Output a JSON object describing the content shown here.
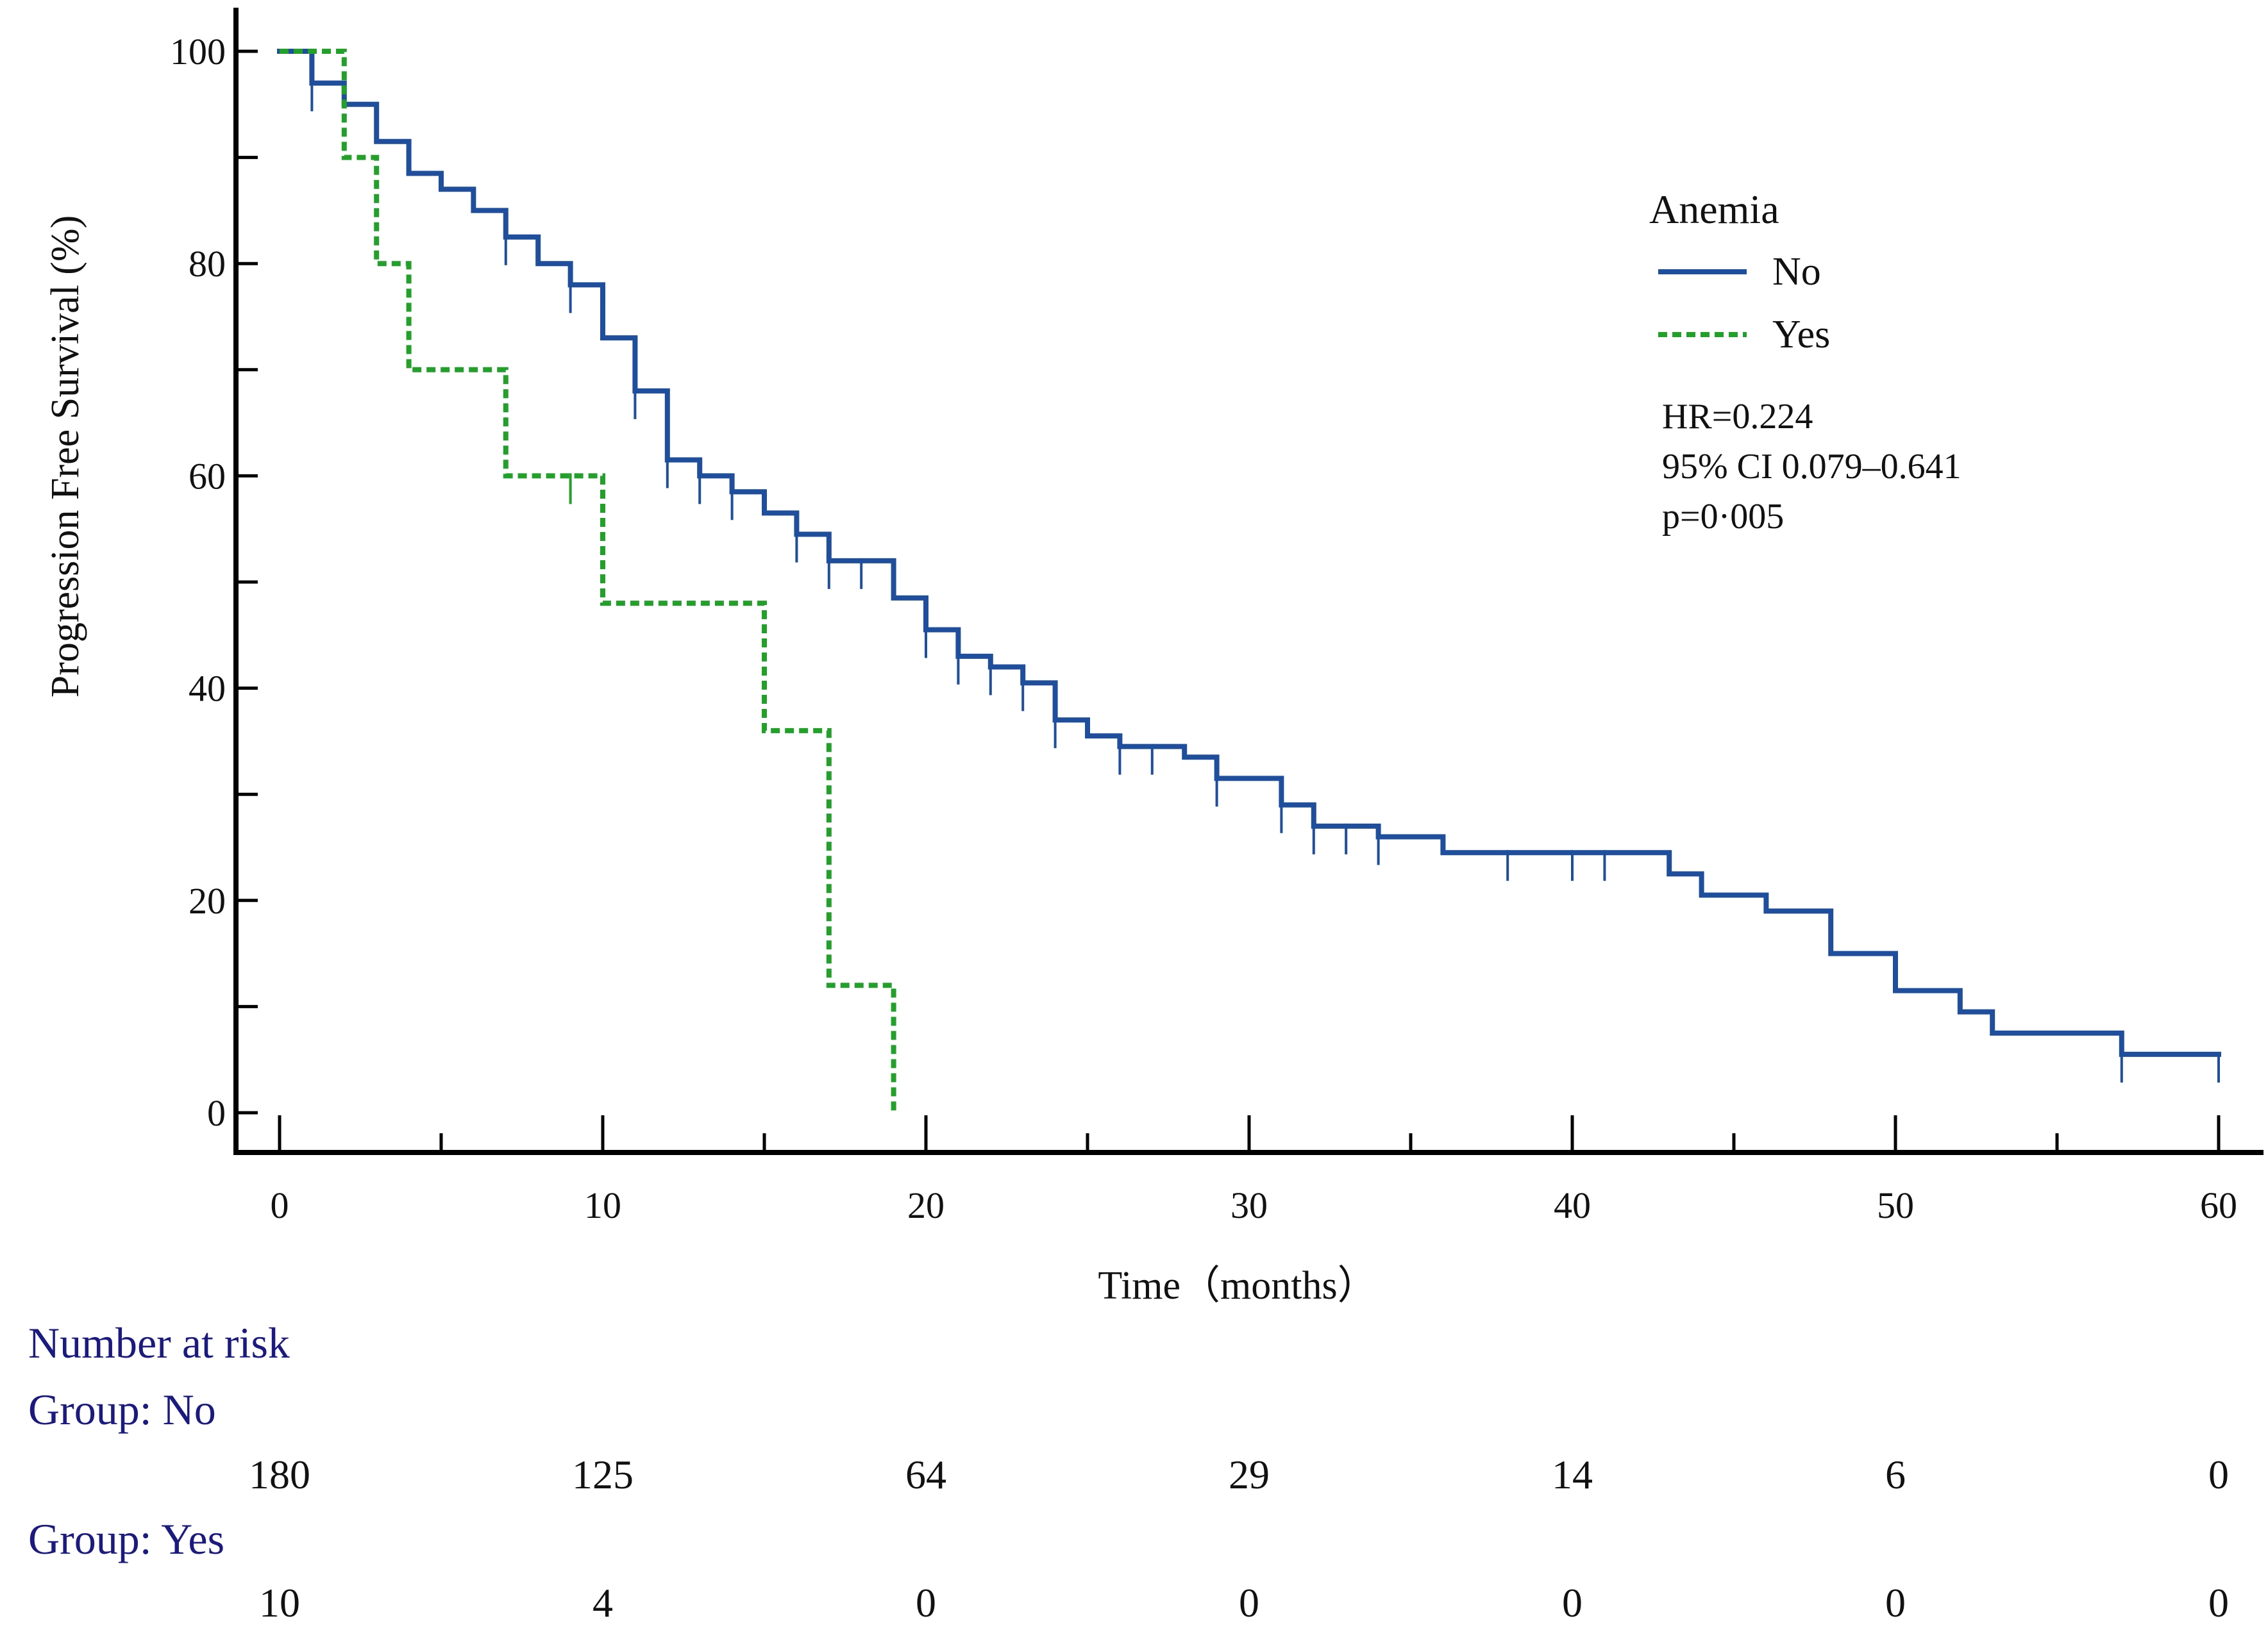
{
  "chart_data": {
    "type": "line",
    "subtype": "kaplan-meier",
    "title": "",
    "xlabel": "Time（months）",
    "ylabel": "Progression Free Survival (%)",
    "xlim": [
      0,
      60
    ],
    "ylim": [
      0,
      100
    ],
    "x_ticks": [
      0,
      10,
      20,
      30,
      40,
      50,
      60
    ],
    "y_ticks": [
      0,
      20,
      40,
      60,
      80,
      100
    ],
    "grid": false,
    "legend": {
      "title": "Anemia",
      "position": "top-right",
      "entries": [
        "No",
        "Yes"
      ]
    },
    "annotations": {
      "hr": "HR=0.224",
      "ci": "95% CI 0.079–0.641",
      "p": "p=0·005"
    },
    "series": [
      {
        "name": "No",
        "color": "#1f4e9c",
        "style": "solid",
        "steps": [
          [
            0,
            100
          ],
          [
            1,
            97
          ],
          [
            2,
            95
          ],
          [
            3,
            91.5
          ],
          [
            4,
            88.5
          ],
          [
            5,
            87
          ],
          [
            6,
            85
          ],
          [
            7,
            82.5
          ],
          [
            8,
            80
          ],
          [
            9,
            78
          ],
          [
            10,
            73
          ],
          [
            11,
            68
          ],
          [
            12,
            61.5
          ],
          [
            13,
            60
          ],
          [
            14,
            58.5
          ],
          [
            15,
            56.5
          ],
          [
            16,
            54.5
          ],
          [
            17,
            52
          ],
          [
            19,
            48.5
          ],
          [
            20,
            45.5
          ],
          [
            21,
            43
          ],
          [
            22,
            42
          ],
          [
            23,
            40.5
          ],
          [
            24,
            37
          ],
          [
            25,
            35.5
          ],
          [
            26,
            34.5
          ],
          [
            28,
            33.5
          ],
          [
            29,
            31.5
          ],
          [
            31,
            29
          ],
          [
            32,
            27
          ],
          [
            34,
            26
          ],
          [
            36,
            24.5
          ],
          [
            43,
            22.5
          ],
          [
            44,
            20.5
          ],
          [
            46,
            19
          ],
          [
            48,
            15
          ],
          [
            50,
            11.5
          ],
          [
            52,
            9.5
          ],
          [
            53,
            7.5
          ],
          [
            57,
            5.5
          ]
        ],
        "end_x": 60,
        "censor_times": [
          1,
          7,
          9,
          11,
          12,
          13,
          14,
          16,
          17,
          18,
          20,
          21,
          22,
          23,
          24,
          26,
          27,
          29,
          31,
          32,
          33,
          34,
          38,
          40,
          41,
          57,
          60
        ]
      },
      {
        "name": "Yes",
        "color": "#22a02a",
        "style": "dashed",
        "steps": [
          [
            0,
            100
          ],
          [
            2,
            90
          ],
          [
            3,
            80
          ],
          [
            4,
            70
          ],
          [
            7,
            60
          ],
          [
            10,
            48
          ],
          [
            15,
            36
          ],
          [
            17,
            12
          ],
          [
            19,
            0
          ]
        ],
        "end_x": 19,
        "censor_times": [
          9
        ]
      }
    ]
  },
  "risk_table": {
    "heading": "Number at risk",
    "times": [
      0,
      10,
      20,
      30,
      40,
      50,
      60
    ],
    "groups": [
      {
        "label": "Group: No",
        "counts": [
          "180",
          "125",
          "64",
          "29",
          "14",
          "6",
          "0"
        ]
      },
      {
        "label": "Group: Yes",
        "counts": [
          "10",
          "4",
          "0",
          "0",
          "0",
          "0",
          "0"
        ]
      }
    ],
    "heading_color": "#1a1a80"
  }
}
